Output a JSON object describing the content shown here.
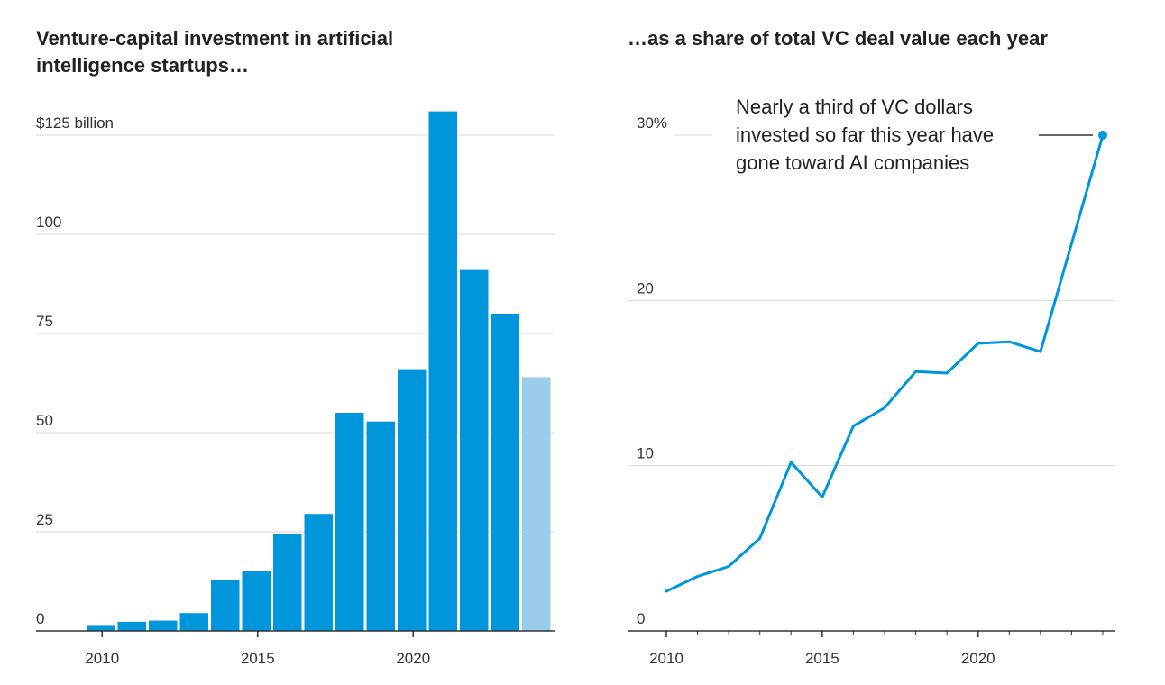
{
  "chart_data": [
    {
      "type": "bar",
      "title": "Venture-capital investment in artificial intelligence startups…",
      "title_lines": [
        "Venture-capital investment in artificial",
        "intelligence startups…"
      ],
      "ylabel": "",
      "ylim": [
        0,
        130
      ],
      "y_ticks": [
        0,
        25,
        50,
        75,
        100,
        125
      ],
      "y_tick_labels": [
        "0",
        "25",
        "50",
        "75",
        "100",
        "$125 billion"
      ],
      "x_ticks": [
        2010,
        2015,
        2020
      ],
      "x_tick_labels": [
        "2010",
        "2015",
        "2020"
      ],
      "categories": [
        2010,
        2011,
        2012,
        2013,
        2014,
        2015,
        2016,
        2017,
        2018,
        2019,
        2020,
        2021,
        2022,
        2023,
        2024
      ],
      "values": [
        1.5,
        2.3,
        2.6,
        4.5,
        12.8,
        15,
        24.5,
        29.5,
        55,
        52.8,
        66,
        131,
        91,
        80,
        64
      ],
      "partial_year": 2024,
      "colors": {
        "bar": "#0096db",
        "partial": "#99cdea"
      },
      "grid": true
    },
    {
      "type": "line",
      "title": "…as a share of total VC deal value each year",
      "ylim": [
        0,
        31
      ],
      "y_ticks": [
        0,
        10,
        20,
        30
      ],
      "y_tick_labels": [
        "0",
        "10",
        "20",
        "30%"
      ],
      "x_ticks": [
        2010,
        2015,
        2020
      ],
      "x_tick_labels": [
        "2010",
        "2015",
        "2020"
      ],
      "x": [
        2010,
        2011,
        2012,
        2013,
        2014,
        2015,
        2016,
        2017,
        2018,
        2019,
        2020,
        2021,
        2022,
        2024
      ],
      "values": [
        2.4,
        3.3,
        3.9,
        5.6,
        10.2,
        8.1,
        12.4,
        13.5,
        15.7,
        15.6,
        17.4,
        17.5,
        16.9,
        30
      ],
      "annotation_lines": [
        "Nearly a third of VC dollars",
        "invested so far this year have",
        "gone toward AI companies"
      ],
      "colors": {
        "line": "#0096db"
      },
      "grid": true
    }
  ]
}
